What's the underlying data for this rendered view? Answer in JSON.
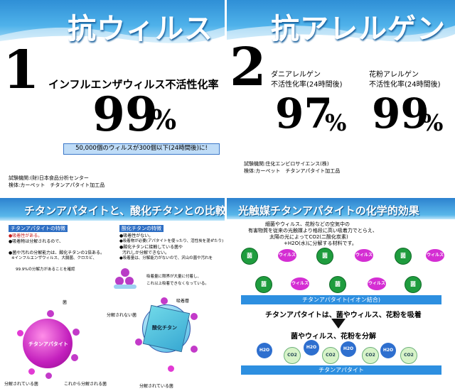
{
  "panel1": {
    "title": "抗ウィルス",
    "number": "1",
    "heading": "インフルエンザウィルス不活性化率",
    "percent_value": "99",
    "percent_sign": "%",
    "box_text": "50,000個のウィルスが300個以下(24時間後)に!",
    "note1": "試験機関:(財)日本食品分析センター",
    "note2": "検体:カーペット　チタンアパタイト加工品"
  },
  "panel2": {
    "title": "抗アレルゲン",
    "number": "2",
    "left_label1": "ダニアレルゲン",
    "left_label2": "不活性化率(24時間後)",
    "left_value": "97",
    "right_label1": "花粉アレルゲン",
    "right_label2": "不活性化率(24時間後)",
    "right_value": "99",
    "percent_sign": "%",
    "note1": "試験機関:住化エンビロサイエンス(株)",
    "note2": "検体:カーペット　チタンアパタイト加工品"
  },
  "panel3": {
    "title": "チタンアパタイトと、酸化チタンとの比較",
    "left_head": "チタンアパタイトの特徴",
    "left_items": [
      "●吸着性がある。",
      "●吸着物は分解されるので、",
      "●菌や汚れの分解能力は、酸化チタンの1倍ある。",
      "※インフルエンザウィルス、大腸菌、クロカビ、",
      "99.9%の分解力があることを確認"
    ],
    "right_head": "酸化チタンの特徴",
    "right_items": [
      "●吸着性がない。",
      "●吸着物が必要(アパタイトを使ったり、活性炭を混ぜたり)",
      "●酸化チタンに接触している菌や",
      "汚れしか分解できない。",
      "●吸着量は、分解能力がないので、沢山の菌や汚れを"
    ],
    "adsorb_note1": "吸着量に限界が大量に付着し、",
    "adsorb_note2": "これ以上吸着できなくなっている。",
    "apatite_label": "チタンアパタイト",
    "titania_label": "酸化チタン",
    "label_bacteria": "菌",
    "label_adsorb_layer": "吸着層",
    "label_not_decomposed": "分解されない菌",
    "label_decomposed1": "分解されている菌",
    "label_to_decompose": "これから分解される菌",
    "label_decomposed2": "分解されている菌"
  },
  "panel4": {
    "title": "光触媒チタンアパタイトの化学的効果",
    "intro1": "細菌やウィルス、花粉などの空気中の",
    "intro2": "有害物質を従来の光触媒より格段に高い吸着力でとらえ、",
    "intro3": "太陽の光によってCO2(二酸化炭素)",
    "intro4": "+H2O(水)に分解する材料です。",
    "bacteria": "菌",
    "virus": "ウィルス",
    "bar1": "チタンアパタイト(イオン結合)",
    "adsorb_text": "チタンアパタイトは、菌やウィルス、花粉を吸着",
    "decompose_text": "菌やウィルス、花粉を分解",
    "h2o": "H2O",
    "co2": "CO2",
    "bar2": "チタンアパタイト"
  },
  "colors": {
    "banner_blue": "#3a9de0",
    "green": "#2ea84a",
    "magenta": "#d12fc9",
    "box_fill": "#bfdcf7",
    "bar_blue": "#2d8fe0"
  }
}
